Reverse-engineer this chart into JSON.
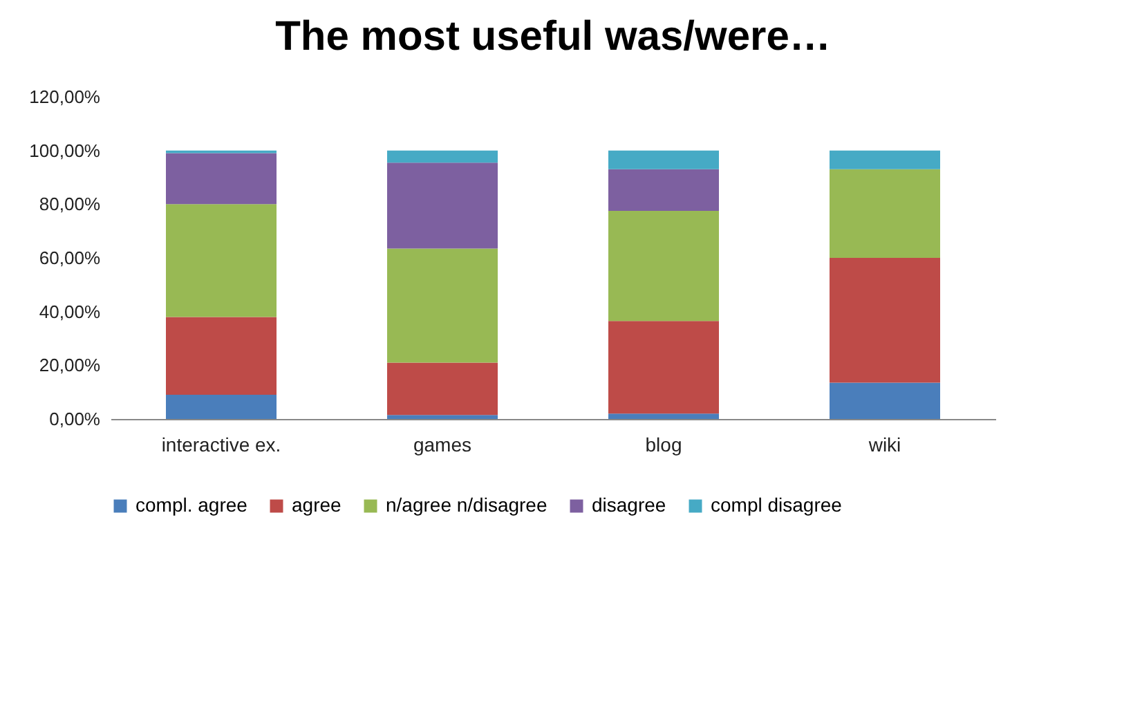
{
  "chart_data": {
    "type": "bar",
    "title": "The most useful was/were…",
    "categories": [
      "interactive ex.",
      "games",
      "blog",
      "wiki"
    ],
    "stacked": true,
    "series": [
      {
        "name": "compl. agree",
        "color": "#4a7ebb",
        "values": [
          9,
          1.5,
          2,
          13.5
        ]
      },
      {
        "name": "agree",
        "color": "#be4b48",
        "values": [
          29,
          19.5,
          34.5,
          46.5
        ]
      },
      {
        "name": "n/agree n/disagree",
        "color": "#98b954",
        "values": [
          42,
          42.5,
          41,
          33
        ]
      },
      {
        "name": "disagree",
        "color": "#7d60a0",
        "values": [
          19,
          32,
          15.5,
          0
        ]
      },
      {
        "name": "compl disagree",
        "color": "#46aac5",
        "values": [
          1,
          4.5,
          7,
          7
        ]
      }
    ],
    "ylim": [
      0,
      120
    ],
    "yticks": [
      {
        "value": 0,
        "label": "0,00%"
      },
      {
        "value": 20,
        "label": "20,00%"
      },
      {
        "value": 40,
        "label": "40,00%"
      },
      {
        "value": 60,
        "label": "60,00%"
      },
      {
        "value": 80,
        "label": "80,00%"
      },
      {
        "value": 100,
        "label": "100,00%"
      },
      {
        "value": 120,
        "label": "120,00%"
      }
    ],
    "grid": false,
    "legend": "bottom"
  }
}
